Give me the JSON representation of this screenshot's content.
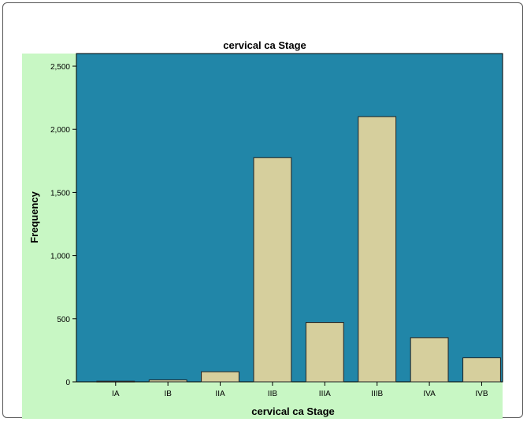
{
  "chart_data": {
    "type": "bar",
    "title": "cervical ca Stage",
    "xlabel": "cervical ca Stage",
    "ylabel": "Frequency",
    "categories": [
      "IA",
      "IB",
      "IIA",
      "IIB",
      "IIIA",
      "IIIB",
      "IVA",
      "IVB"
    ],
    "values": [
      5,
      15,
      80,
      1775,
      470,
      2100,
      350,
      190
    ],
    "ylim": [
      0,
      2600
    ],
    "yticks": [
      0,
      500,
      1000,
      1500,
      2000,
      2500
    ],
    "ytick_labels": [
      "0",
      "500",
      "1,000",
      "1,500",
      "2,000",
      "2,500"
    ],
    "grid": false,
    "legend": "none",
    "colors": {
      "outer_background": "#c8f7c4",
      "plot_background": "#2186a8",
      "bar_fill": "#d6cf9d",
      "bar_edge": "#222222"
    }
  }
}
